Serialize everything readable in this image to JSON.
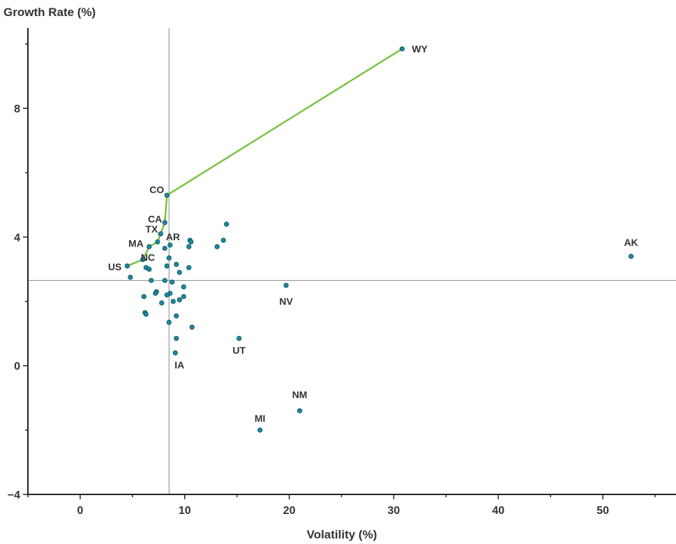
{
  "chart_data": {
    "type": "scatter",
    "xlabel": "Volatility (%)",
    "ylabel": "Growth Rate (%)",
    "xlim": [
      -5,
      57
    ],
    "ylim": [
      -4,
      10.5
    ],
    "xticks": [
      0,
      10,
      20,
      30,
      40,
      50
    ],
    "yticks": [
      -4,
      0,
      4,
      8
    ],
    "ytick_labels": [
      "−4",
      "0",
      "4",
      "8"
    ],
    "reference_lines": {
      "x": 8.5,
      "y": 2.65
    },
    "frontier": {
      "color": "#7dc242",
      "points": [
        [
          4.5,
          3.1
        ],
        [
          6.0,
          3.3
        ],
        [
          6.6,
          3.7
        ],
        [
          7.4,
          3.85
        ],
        [
          7.7,
          4.1
        ],
        [
          8.1,
          4.45
        ],
        [
          8.3,
          5.3
        ],
        [
          30.8,
          9.85
        ]
      ]
    },
    "point_color": "#1a8aa0",
    "points": [
      {
        "x": 30.8,
        "y": 9.85,
        "label": "WY"
      },
      {
        "x": 52.7,
        "y": 3.4,
        "label": "AK"
      },
      {
        "x": 8.3,
        "y": 5.3,
        "label": "CO"
      },
      {
        "x": 8.1,
        "y": 4.45,
        "label": "CA"
      },
      {
        "x": 7.7,
        "y": 4.1,
        "label": "TX"
      },
      {
        "x": 8.6,
        "y": 3.75,
        "label": "AR"
      },
      {
        "x": 6.6,
        "y": 3.7,
        "label": "MA"
      },
      {
        "x": 6.0,
        "y": 3.3,
        "label": "NC"
      },
      {
        "x": 4.5,
        "y": 3.1,
        "label": "US"
      },
      {
        "x": 19.7,
        "y": 2.5,
        "label": "NV"
      },
      {
        "x": 15.2,
        "y": 0.85,
        "label": "UT"
      },
      {
        "x": 9.1,
        "y": 0.4,
        "label": "IA"
      },
      {
        "x": 21.0,
        "y": -1.4,
        "label": "NM"
      },
      {
        "x": 17.2,
        "y": -2.0,
        "label": "MI"
      },
      {
        "x": 7.4,
        "y": 3.85
      },
      {
        "x": 14.0,
        "y": 4.4
      },
      {
        "x": 13.7,
        "y": 3.9
      },
      {
        "x": 13.1,
        "y": 3.7
      },
      {
        "x": 10.5,
        "y": 3.9
      },
      {
        "x": 10.6,
        "y": 3.85
      },
      {
        "x": 10.4,
        "y": 3.7
      },
      {
        "x": 8.1,
        "y": 3.65
      },
      {
        "x": 8.5,
        "y": 3.35
      },
      {
        "x": 9.2,
        "y": 3.15
      },
      {
        "x": 8.3,
        "y": 3.1
      },
      {
        "x": 10.4,
        "y": 3.05
      },
      {
        "x": 9.5,
        "y": 2.9
      },
      {
        "x": 6.3,
        "y": 3.05
      },
      {
        "x": 6.6,
        "y": 3.0
      },
      {
        "x": 4.8,
        "y": 2.75
      },
      {
        "x": 6.8,
        "y": 2.65
      },
      {
        "x": 8.1,
        "y": 2.65
      },
      {
        "x": 8.8,
        "y": 2.6
      },
      {
        "x": 9.9,
        "y": 2.45
      },
      {
        "x": 7.3,
        "y": 2.3
      },
      {
        "x": 7.2,
        "y": 2.25
      },
      {
        "x": 8.6,
        "y": 2.25
      },
      {
        "x": 8.3,
        "y": 2.2
      },
      {
        "x": 6.1,
        "y": 2.15
      },
      {
        "x": 9.9,
        "y": 2.15
      },
      {
        "x": 9.5,
        "y": 2.05
      },
      {
        "x": 8.9,
        "y": 2.0
      },
      {
        "x": 7.8,
        "y": 1.95
      },
      {
        "x": 6.2,
        "y": 1.65
      },
      {
        "x": 6.3,
        "y": 1.6
      },
      {
        "x": 9.2,
        "y": 1.55
      },
      {
        "x": 8.5,
        "y": 1.35
      },
      {
        "x": 10.7,
        "y": 1.2
      },
      {
        "x": 9.2,
        "y": 0.85
      }
    ]
  }
}
